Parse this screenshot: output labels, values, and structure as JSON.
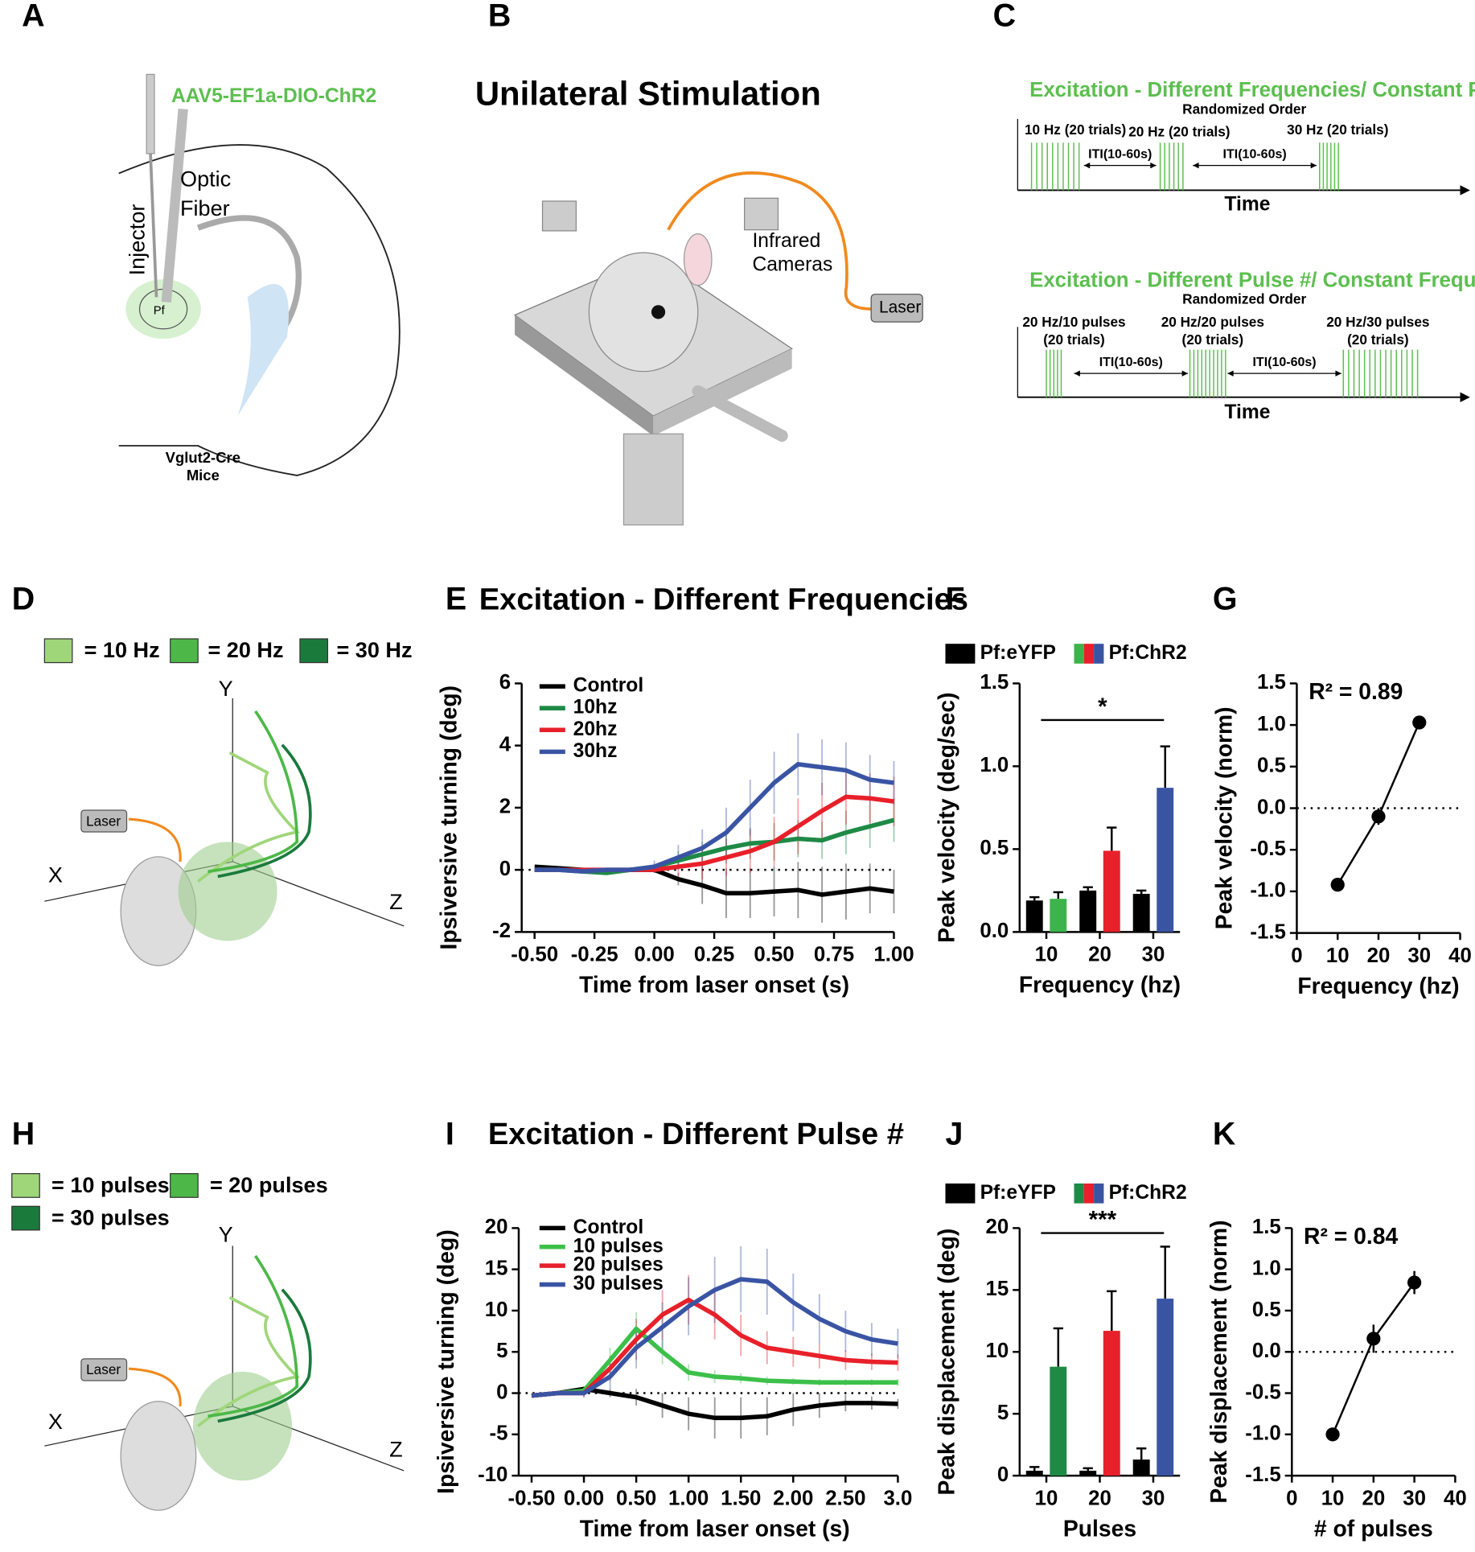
{
  "panels": [
    "A",
    "B",
    "C",
    "D",
    "E",
    "F",
    "G",
    "H",
    "I",
    "J",
    "K"
  ],
  "diagram_a": {
    "virus": "AAV5-EF1a-DIO-ChR2",
    "fiber": [
      "Optic",
      "Fiber"
    ],
    "injector": "Injector",
    "region": "Pf",
    "mouse": [
      "Vglut2-Cre",
      "Mice"
    ]
  },
  "diagram_b": {
    "title": "Unilateral Stimulation",
    "cameras": [
      "Infrared",
      "Cameras"
    ],
    "laser": "Laser"
  },
  "diagram_c": {
    "protocols": [
      {
        "title": "Excitation - Different Frequencies/ Constant Pulse #",
        "order": "Randomized Order",
        "blocks": [
          [
            "10 Hz (20 trials)"
          ],
          [
            "20 Hz (20 trials)"
          ],
          [
            "30 Hz (20 trials)"
          ]
        ],
        "iti": [
          "ITI(10-60s)",
          "ITI(10-60s)"
        ],
        "axis": "Time"
      },
      {
        "title": "Excitation - Different Pulse #/ Constant Frequency",
        "order": "Randomized Order",
        "blocks": [
          [
            "20 Hz/10 pulses",
            "(20 trials)"
          ],
          [
            "20 Hz/20 pulses",
            "(20 trials)"
          ],
          [
            "20 Hz/30 pulses",
            "(20 trials)"
          ]
        ],
        "iti": [
          "ITI(10-60s)",
          "ITI(10-60s)"
        ],
        "axis": "Time"
      }
    ]
  },
  "diagram_d": {
    "legend": [
      "= 10 Hz",
      "= 20 Hz",
      "= 30 Hz"
    ],
    "colors": [
      "#9fd67a",
      "#4db848",
      "#1a7a3c"
    ],
    "axes": [
      "Y",
      "X",
      "Z"
    ],
    "laser": "Laser"
  },
  "diagram_h": {
    "legend": [
      "= 10 pulses",
      "= 20 pulses",
      "= 30 pulses"
    ],
    "colors": [
      "#9fd67a",
      "#4db848",
      "#1a7a3c"
    ],
    "axes": [
      "Y",
      "X",
      "Z"
    ],
    "laser": "Laser"
  },
  "chart_data": [
    {
      "type": "line",
      "title": "Excitation - Different Frequencies",
      "xlabel": "Time from laser onset (s)",
      "ylabel": "Ipsiversive turning (deg)",
      "x": [
        -0.5,
        -0.4,
        -0.3,
        -0.2,
        -0.1,
        0,
        0.1,
        0.2,
        0.3,
        0.4,
        0.5,
        0.6,
        0.7,
        0.8,
        0.9,
        1.0
      ],
      "xlim": [
        -0.5,
        1.0
      ],
      "xticks": [
        {
          "value": -0.5,
          "label": "-0.50"
        },
        {
          "value": -0.25,
          "label": "-0.25"
        },
        {
          "value": 0,
          "label": "0.00"
        },
        {
          "value": 0.25,
          "label": "0.25"
        },
        {
          "value": 0.5,
          "label": "0.50"
        },
        {
          "value": 0.75,
          "label": "0.75"
        },
        {
          "value": 1,
          "label": "1.00"
        }
      ],
      "ylim": [
        -2,
        6
      ],
      "yticks": [
        -2,
        0,
        2,
        4,
        6
      ],
      "hline": 0,
      "series": [
        {
          "name": "Control",
          "color": "#000000",
          "values": [
            0.1,
            0.05,
            0,
            -0.05,
            0,
            0,
            -0.3,
            -0.5,
            -0.75,
            -0.75,
            -0.7,
            -0.65,
            -0.8,
            -0.7,
            -0.6,
            -0.7
          ],
          "errors": [
            0,
            0,
            0,
            0,
            0,
            0,
            0.2,
            0.6,
            0.8,
            0.8,
            0.8,
            0.9,
            0.9,
            0.9,
            0.8,
            0.7
          ]
        },
        {
          "name": "10hz",
          "color": "#1e8a46",
          "values": [
            0,
            0,
            -0.05,
            -0.1,
            0,
            0.1,
            0.3,
            0.5,
            0.7,
            0.85,
            0.9,
            1.0,
            0.95,
            1.2,
            1.4,
            1.6
          ],
          "errors": [
            0,
            0,
            0,
            0,
            0,
            0.1,
            0.3,
            0.4,
            0.5,
            0.5,
            0.6,
            0.6,
            0.6,
            0.7,
            0.7,
            0.7
          ]
        },
        {
          "name": "20hz",
          "color": "#e8202a",
          "values": [
            0,
            0,
            0,
            0,
            0,
            0,
            0.1,
            0.2,
            0.4,
            0.6,
            0.9,
            1.4,
            1.9,
            2.35,
            2.3,
            2.2
          ],
          "errors": [
            0,
            0,
            0,
            0,
            0,
            0.1,
            0.3,
            0.5,
            0.6,
            0.7,
            0.8,
            0.9,
            0.9,
            0.9,
            0.8,
            0.8
          ]
        },
        {
          "name": "30hz",
          "color": "#3a54a4",
          "values": [
            0,
            0,
            -0.05,
            0,
            0,
            0.1,
            0.4,
            0.7,
            1.2,
            2.0,
            2.8,
            3.4,
            3.3,
            3.2,
            2.9,
            2.8
          ],
          "errors": [
            0,
            0,
            0,
            0,
            0,
            0.2,
            0.4,
            0.6,
            0.8,
            0.9,
            1.0,
            1.0,
            0.9,
            0.9,
            0.8,
            0.7
          ]
        }
      ]
    },
    {
      "type": "bar",
      "xlabel": "Frequency (hz)",
      "ylabel": "Peak velocity (deg/sec)",
      "categories": [
        "10",
        "20",
        "30"
      ],
      "ylim": [
        0,
        1.5
      ],
      "yticks": [
        {
          "value": 0,
          "label": "0.0"
        },
        {
          "value": 0.5,
          "label": "0.5"
        },
        {
          "value": 1.0,
          "label": "1.0"
        },
        {
          "value": 1.5,
          "label": "1.5"
        }
      ],
      "significance": "*",
      "series": [
        {
          "name": "Pf:eYFP",
          "color": "#000000",
          "values": [
            0.19,
            0.25,
            0.23
          ],
          "errors": [
            0.02,
            0.02,
            0.02
          ]
        },
        {
          "name": "Pf:ChR2",
          "colors": [
            "#3cb44b",
            "#e8202a",
            "#3a54a4"
          ],
          "values": [
            0.2,
            0.49,
            0.87
          ],
          "errors": [
            0.04,
            0.14,
            0.25
          ]
        }
      ]
    },
    {
      "type": "scatter",
      "xlabel": "Frequency (hz)",
      "ylabel": "Peak velocity (norm)",
      "annotation": "R² = 0.89",
      "color": "#000000",
      "x": [
        10,
        20,
        30
      ],
      "values": [
        -0.92,
        -0.1,
        1.03
      ],
      "errors": [
        0.03,
        0.1,
        0.02
      ],
      "xlim": [
        0,
        40
      ],
      "xticks": [
        0,
        10,
        20,
        30,
        40
      ],
      "ylim": [
        -1.5,
        1.5
      ],
      "yticks": [
        {
          "value": -1.5,
          "label": "-1.5"
        },
        {
          "value": -1.0,
          "label": "-1.0"
        },
        {
          "value": -0.5,
          "label": "-0.5"
        },
        {
          "value": 0,
          "label": "0.0"
        },
        {
          "value": 0.5,
          "label": "0.5"
        },
        {
          "value": 1.0,
          "label": "1.0"
        },
        {
          "value": 1.5,
          "label": "1.5"
        }
      ],
      "hline": 0
    },
    {
      "type": "line",
      "title": "Excitation - Different Pulse #",
      "xlabel": "Time from laser onset (s)",
      "ylabel": "Ipsiversive turning (deg)",
      "x": [
        -0.5,
        -0.25,
        0,
        0.25,
        0.5,
        0.75,
        1.0,
        1.25,
        1.5,
        1.75,
        2.0,
        2.25,
        2.5,
        2.75,
        3.0
      ],
      "xlim": [
        -0.5,
        3.0
      ],
      "xticks": [
        {
          "value": -0.5,
          "label": "-0.50"
        },
        {
          "value": 0,
          "label": "0.00"
        },
        {
          "value": 0.5,
          "label": "0.50"
        },
        {
          "value": 1,
          "label": "1.00"
        },
        {
          "value": 1.5,
          "label": "1.50"
        },
        {
          "value": 2,
          "label": "2.00"
        },
        {
          "value": 2.5,
          "label": "2.50"
        },
        {
          "value": 3,
          "label": "3.0"
        }
      ],
      "ylim": [
        -10,
        20
      ],
      "yticks": [
        -10,
        -5,
        0,
        5,
        10,
        15,
        20
      ],
      "hline": 0,
      "series": [
        {
          "name": "Control",
          "color": "#000000",
          "values": [
            -0.3,
            0,
            0.5,
            0,
            -0.5,
            -1.5,
            -2.5,
            -3,
            -3,
            -2.8,
            -2,
            -1.5,
            -1.2,
            -1.2,
            -1.3
          ],
          "errors": [
            0,
            0,
            0.3,
            0.5,
            1,
            1.5,
            2,
            2.5,
            2.5,
            2.3,
            2,
            1.5,
            1,
            0.8,
            0.6
          ]
        },
        {
          "name": "10 pulses",
          "color": "#3cc04a",
          "values": [
            -0.3,
            0,
            0.3,
            4,
            7.8,
            5,
            2.5,
            2,
            1.8,
            1.5,
            1.4,
            1.3,
            1.3,
            1.3,
            1.3
          ],
          "errors": [
            0,
            0,
            0.5,
            1.5,
            2,
            1.5,
            1,
            0.8,
            0.6,
            0.5,
            0.4,
            0.4,
            0.4,
            0.4,
            0.4
          ]
        },
        {
          "name": "20 pulses",
          "color": "#e8202a",
          "values": [
            -0.3,
            0,
            0,
            3,
            6.5,
            9.5,
            11.3,
            9.5,
            7,
            5.5,
            5,
            4.5,
            4,
            3.8,
            3.7
          ],
          "errors": [
            0,
            0,
            0.5,
            1.5,
            2.5,
            3,
            3,
            3,
            2.5,
            2,
            1.8,
            1.5,
            1.2,
            1,
            1
          ]
        },
        {
          "name": "30 pulses",
          "color": "#3a54a4",
          "values": [
            -0.3,
            0,
            0,
            2,
            5.5,
            8,
            10.5,
            12.5,
            13.8,
            13.5,
            11,
            9,
            7.5,
            6.5,
            6
          ],
          "errors": [
            0,
            0,
            0.5,
            1.5,
            2.5,
            3,
            3.5,
            4,
            4,
            4,
            3.5,
            3,
            2.5,
            2,
            1.8
          ]
        }
      ]
    },
    {
      "type": "bar",
      "xlabel": "Pulses",
      "ylabel": "Peak displacement (deg)",
      "categories": [
        "10",
        "20",
        "30"
      ],
      "ylim": [
        0,
        20
      ],
      "yticks": [
        0,
        5,
        10,
        15,
        20
      ],
      "significance": "***",
      "series": [
        {
          "name": "Pf:eYFP",
          "color": "#000000",
          "values": [
            0.4,
            0.4,
            1.3
          ],
          "errors": [
            0.3,
            0.2,
            0.9
          ]
        },
        {
          "name": "Pf:ChR2",
          "colors": [
            "#1e8a46",
            "#e8202a",
            "#3a54a4"
          ],
          "values": [
            8.8,
            11.7,
            14.3
          ],
          "errors": [
            3.1,
            3.2,
            4.2
          ]
        }
      ]
    },
    {
      "type": "scatter",
      "xlabel": "# of pulses",
      "ylabel": "Peak displacement (norm)",
      "annotation": "R² = 0.84",
      "color": "#000000",
      "x": [
        10,
        20,
        30
      ],
      "values": [
        -1.0,
        0.16,
        0.84
      ],
      "errors": [
        0.02,
        0.17,
        0.14
      ],
      "xlim": [
        0,
        40
      ],
      "xticks": [
        0,
        10,
        20,
        30,
        40
      ],
      "ylim": [
        -1.5,
        1.5
      ],
      "yticks": [
        {
          "value": -1.5,
          "label": "-1.5"
        },
        {
          "value": -1.0,
          "label": "-1.0"
        },
        {
          "value": -0.5,
          "label": "-0.5"
        },
        {
          "value": 0,
          "label": "0.0"
        },
        {
          "value": 0.5,
          "label": "0.5"
        },
        {
          "value": 1.0,
          "label": "1.0"
        },
        {
          "value": 1.5,
          "label": "1.5"
        }
      ],
      "hline": 0
    }
  ]
}
